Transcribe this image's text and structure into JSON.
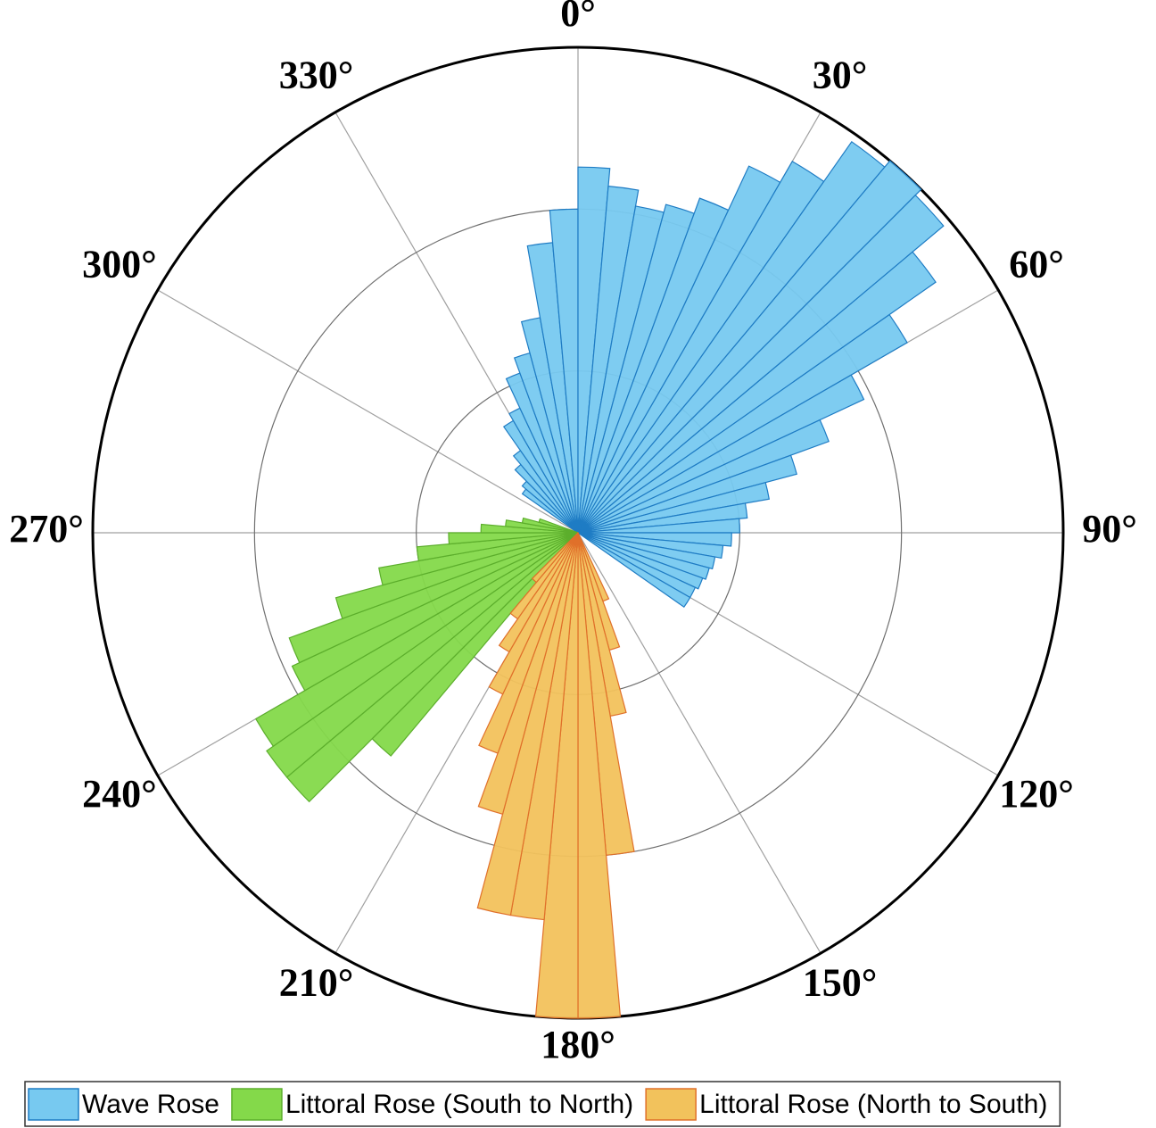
{
  "chart_data": {
    "type": "rose",
    "direction": "clockwise",
    "zero": "north",
    "rlim": [
      0,
      3
    ],
    "rgrid": [
      1,
      2
    ],
    "thetaticks": [
      {
        "value": 0,
        "label": "0°"
      },
      {
        "value": 30,
        "label": "30°"
      },
      {
        "value": 60,
        "label": "60°"
      },
      {
        "value": 90,
        "label": "90°"
      },
      {
        "value": 120,
        "label": "120°"
      },
      {
        "value": 150,
        "label": "150°"
      },
      {
        "value": 180,
        "label": "180°"
      },
      {
        "value": 210,
        "label": "210°"
      },
      {
        "value": 240,
        "label": "240°"
      },
      {
        "value": 270,
        "label": "270°"
      },
      {
        "value": 300,
        "label": "300°"
      },
      {
        "value": 330,
        "label": "330°"
      }
    ],
    "legend": "bottom",
    "series": [
      {
        "name": "Wave Rose",
        "color": "#77c9f0",
        "edgecolor": "#1f7cc4",
        "bins": [
          -55,
          -50,
          -45,
          -40,
          -35,
          -30,
          -25,
          -20,
          -15,
          -10,
          -5,
          0,
          5,
          10,
          15,
          20,
          25,
          30,
          35,
          40,
          45,
          50,
          55,
          60,
          65,
          70,
          75,
          80,
          85,
          90,
          95,
          100,
          105,
          110,
          115,
          120,
          125
        ],
        "values": [
          0.42,
          0.45,
          0.55,
          0.62,
          0.8,
          0.85,
          1.05,
          1.15,
          1.35,
          1.8,
          2.0,
          2.26,
          2.15,
          2.05,
          2.1,
          2.2,
          2.5,
          2.65,
          2.95,
          3.0,
          2.95,
          2.7,
          2.35,
          1.95,
          1.65,
          1.4,
          1.2,
          1.05,
          1.0,
          0.95,
          0.9,
          0.86,
          0.84,
          0.82,
          0.8,
          0.8
        ]
      },
      {
        "name": "Littoral Rose (South to North)",
        "color": "#84d94a",
        "edgecolor": "#5cae2c",
        "bins": [
          220,
          225,
          230,
          235,
          240,
          245,
          250,
          255,
          260,
          265,
          270,
          275,
          280,
          285,
          290
        ],
        "values": [
          1.8,
          2.35,
          2.35,
          2.3,
          1.95,
          1.9,
          1.55,
          1.25,
          1.0,
          0.8,
          0.6,
          0.45,
          0.35,
          0.25
        ]
      },
      {
        "name": "Littoral Rose (North to South)",
        "color": "#f2c25c",
        "edgecolor": "#e0702a",
        "bins": [
          155,
          160,
          165,
          170,
          175,
          180,
          185,
          190,
          195,
          200,
          205,
          210,
          215,
          220,
          225
        ],
        "values": [
          0.45,
          0.75,
          1.15,
          2.0,
          3.0,
          3.0,
          2.4,
          2.4,
          1.8,
          1.45,
          1.1,
          0.85,
          0.65,
          0.4
        ]
      }
    ]
  }
}
